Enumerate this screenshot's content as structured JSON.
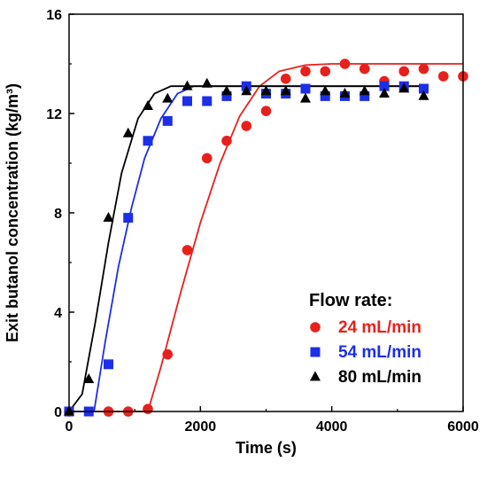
{
  "chart_data": {
    "type": "scatter",
    "xlabel": "Time (s)",
    "ylabel": "Exit butanol concentration (kg/m³)",
    "xlim": [
      0,
      6000
    ],
    "ylim": [
      0,
      16
    ],
    "xticks": [
      0,
      2000,
      4000,
      6000
    ],
    "yticks": [
      0,
      4,
      8,
      12,
      16
    ],
    "grid": false,
    "legend": {
      "title": "Flow rate:",
      "placement": "bottom-right"
    },
    "series": [
      {
        "name": "24 mL/min",
        "marker": "circle",
        "color": "#e8201c",
        "points": [
          [
            0,
            0
          ],
          [
            600,
            0
          ],
          [
            900,
            0
          ],
          [
            1200,
            0.1
          ],
          [
            1500,
            2.3
          ],
          [
            1800,
            6.5
          ],
          [
            2100,
            10.2
          ],
          [
            2400,
            10.9
          ],
          [
            2700,
            11.5
          ],
          [
            3000,
            12.1
          ],
          [
            3300,
            13.4
          ],
          [
            3600,
            13.7
          ],
          [
            3900,
            13.7
          ],
          [
            4200,
            14.0
          ],
          [
            4500,
            13.8
          ],
          [
            4800,
            13.3
          ],
          [
            5100,
            13.7
          ],
          [
            5400,
            13.8
          ],
          [
            5700,
            13.5
          ],
          [
            6000,
            13.5
          ]
        ],
        "fit": [
          [
            0,
            0
          ],
          [
            1200,
            0
          ],
          [
            1400,
            1.8
          ],
          [
            1700,
            4.8
          ],
          [
            2000,
            7.6
          ],
          [
            2300,
            10.0
          ],
          [
            2600,
            11.9
          ],
          [
            2900,
            13.1
          ],
          [
            3200,
            13.7
          ],
          [
            3600,
            13.95
          ],
          [
            4000,
            14.0
          ],
          [
            6000,
            14.0
          ]
        ]
      },
      {
        "name": "54 mL/min",
        "marker": "square",
        "color": "#1c2ee8",
        "points": [
          [
            0,
            0
          ],
          [
            300,
            0
          ],
          [
            600,
            1.9
          ],
          [
            900,
            7.8
          ],
          [
            1200,
            10.9
          ],
          [
            1500,
            11.7
          ],
          [
            1800,
            12.5
          ],
          [
            2100,
            12.5
          ],
          [
            2400,
            12.7
          ],
          [
            2700,
            13.1
          ],
          [
            3000,
            12.8
          ],
          [
            3300,
            12.8
          ],
          [
            3600,
            13.0
          ],
          [
            3900,
            12.7
          ],
          [
            4200,
            12.7
          ],
          [
            4500,
            12.7
          ],
          [
            4800,
            13.1
          ],
          [
            5100,
            13.1
          ],
          [
            5400,
            13.0
          ]
        ],
        "fit": [
          [
            0,
            0
          ],
          [
            380,
            0
          ],
          [
            550,
            2.8
          ],
          [
            750,
            5.8
          ],
          [
            950,
            8.2
          ],
          [
            1150,
            10.2
          ],
          [
            1400,
            11.8
          ],
          [
            1650,
            12.8
          ],
          [
            1900,
            13.1
          ],
          [
            5400,
            13.1
          ]
        ]
      },
      {
        "name": "80 mL/min",
        "marker": "triangle",
        "color": "#000000",
        "points": [
          [
            0,
            0
          ],
          [
            300,
            1.3
          ],
          [
            600,
            7.8
          ],
          [
            900,
            11.2
          ],
          [
            1200,
            12.3
          ],
          [
            1500,
            12.6
          ],
          [
            1800,
            13.1
          ],
          [
            2100,
            13.2
          ],
          [
            2400,
            12.9
          ],
          [
            2700,
            12.9
          ],
          [
            3000,
            12.9
          ],
          [
            3300,
            12.9
          ],
          [
            3600,
            12.6
          ],
          [
            3900,
            12.9
          ],
          [
            4200,
            12.8
          ],
          [
            4500,
            12.9
          ],
          [
            4800,
            12.8
          ],
          [
            5100,
            13.0
          ],
          [
            5400,
            12.7
          ]
        ],
        "fit": [
          [
            0,
            0
          ],
          [
            200,
            0.7
          ],
          [
            400,
            3.6
          ],
          [
            600,
            6.8
          ],
          [
            800,
            9.6
          ],
          [
            1050,
            11.8
          ],
          [
            1300,
            12.8
          ],
          [
            1550,
            13.1
          ],
          [
            5400,
            13.1
          ]
        ]
      }
    ]
  }
}
